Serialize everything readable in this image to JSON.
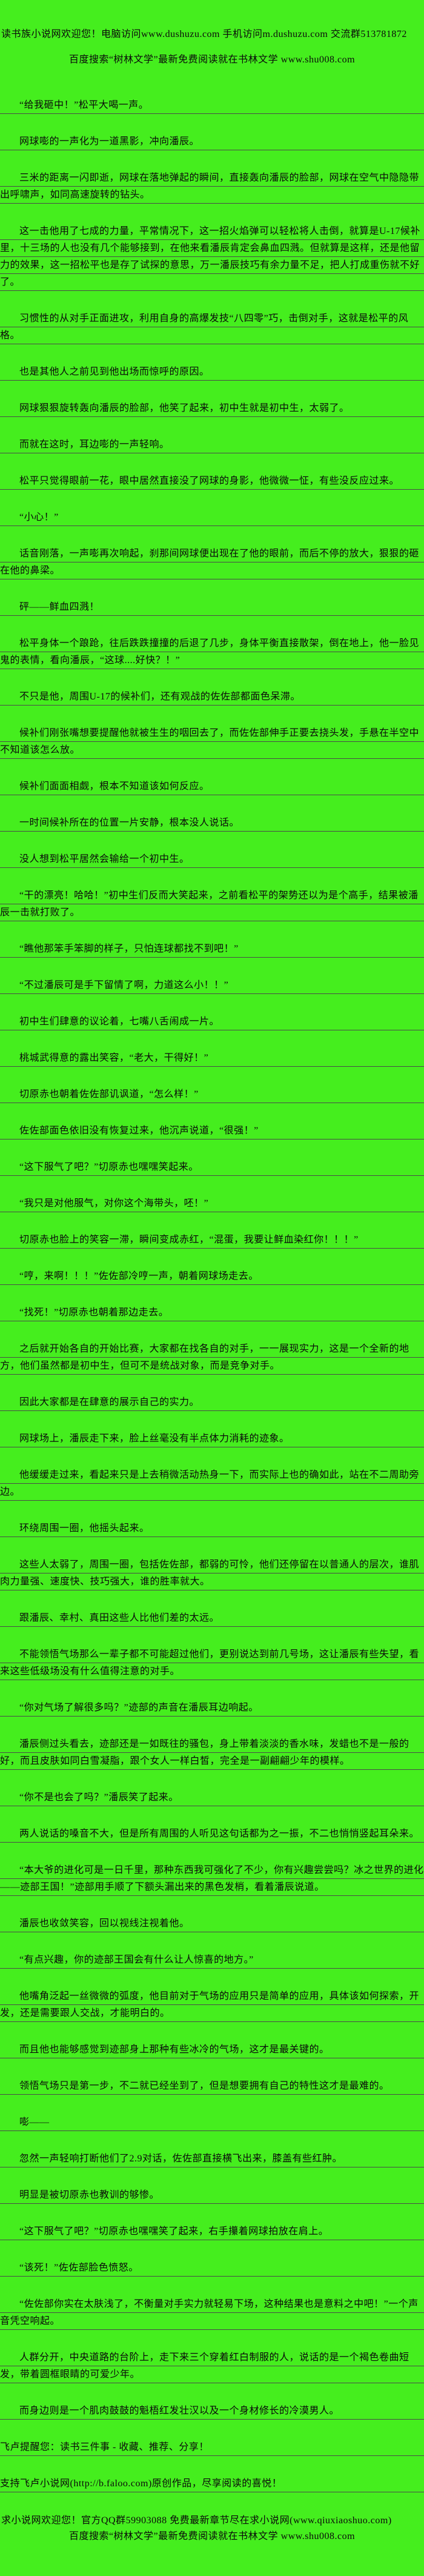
{
  "page": {
    "background_color": "#45ee1e",
    "text_color": "#0a0a0a",
    "rule_color": "#4a4a4a"
  },
  "header": {
    "site_notice": "读书族小说网欢迎您！电脑访问www.dushuzu.com 手机访问m.dushuzu.com 交流群513781872",
    "search_notice": "百度搜索“树林文学”最新免费阅读就在书林文学 www.shu008.com"
  },
  "content": {
    "paragraphs": [
      {
        "text": "“给我砸中！”松平大喝一声。",
        "indent": true
      },
      {
        "text": "网球嘭的一声化为一道黑影，冲向潘辰。",
        "indent": true
      },
      {
        "text": "三米的距离一闪即逝，网球在落地弹起的瞬间，直接轰向潘辰的脸部，网球在空气中隐隐带出呼啸声，如同高速旋转的钻头。",
        "indent": true
      },
      {
        "text": "这一击他用了七成的力量，平常情况下，这一招火焰弹可以轻松将人击倒，就算是U-17候补里，十三场的人也没有几个能够接到，在他来看潘辰肯定会鼻血四溅。但就算是这样，还是他留力的效果，这一招松平也是存了试探的意思，万一潘辰技巧有余力量不足，把人打成重伤就不好了。",
        "indent": true
      },
      {
        "text": "习惯性的从对手正面进攻，利用自身的高爆发技“八四零”巧，击倒对手，这就是松平的风格。",
        "indent": true
      },
      {
        "text": "也是其他人之前见到他出场而惊呼的原因。",
        "indent": true
      },
      {
        "text": "网球狠狠旋转轰向潘辰的脸部，他笑了起来，初中生就是初中生，太弱了。",
        "indent": true
      },
      {
        "text": "而就在这时，耳边嘭的一声轻响。",
        "indent": true
      },
      {
        "text": "松平只觉得眼前一花，眼中居然直接没了网球的身影，他微微一怔，有些没反应过来。",
        "indent": true
      },
      {
        "text": "“小心！”",
        "indent": true
      },
      {
        "text": "话音刚落，一声嘭再次响起，刹那间网球便出现在了他的眼前，而后不停的放大，狠狠的砸在他的鼻梁。",
        "indent": true
      },
      {
        "text": "砰——鲜血四溅！",
        "indent": true
      },
      {
        "text": "松平身体一个踉跄，往后跌跌撞撞的后退了几步，身体平衡直接散架，倒在地上，他一脸见鬼的表情，看向潘辰，“这球....好快？！”",
        "indent": true
      },
      {
        "text": "不只是他，周围U-17的候补们，还有观战的佐佐部都面色呆滞。",
        "indent": true
      },
      {
        "text": "候补们刚张嘴想要提醒他就被生生的咽回去了，而佐佐部伸手正要去挠头发，手悬在半空中不知道该怎么放。",
        "indent": true
      },
      {
        "text": "候补们面面相觑，根本不知道该如何反应。",
        "indent": true
      },
      {
        "text": "一时间候补所在的位置一片安静，根本没人说话。",
        "indent": true
      },
      {
        "text": "没人想到松平居然会输给一个初中生。",
        "indent": true
      },
      {
        "text": "“干的漂亮！哈哈！”初中生们反而大笑起来，之前看松平的架势还以为是个高手，结果被潘辰一击就打败了。",
        "indent": true
      },
      {
        "text": "“瞧他那笨手笨脚的样子，只怕连球都找不到吧！”",
        "indent": true
      },
      {
        "text": "“不过潘辰可是手下留情了啊，力道这么小！！”",
        "indent": true
      },
      {
        "text": "初中生们肆意的议论着，七嘴八舌闹成一片。",
        "indent": true
      },
      {
        "text": "桃城武得意的露出笑容，“老大，干得好！”",
        "indent": true
      },
      {
        "text": "切原赤也朝着佐佐部讥讽道，“怎么样！”",
        "indent": true
      },
      {
        "text": "佐佐部面色依旧没有恢复过来，他沉声说道，“很强！”",
        "indent": true
      },
      {
        "text": "“这下服气了吧？”切原赤也嘿嘿笑起来。",
        "indent": true
      },
      {
        "text": "“我只是对他服气，对你这个海带头，呸！”",
        "indent": true
      },
      {
        "text": "切原赤也脸上的笑容一滞，瞬间变成赤红，“混蛋，我要让鲜血染红你！！！”",
        "indent": true
      },
      {
        "text": "“哼，来啊！！！”佐佐部冷哼一声，朝着网球场走去。",
        "indent": true
      },
      {
        "text": "“找死！”切原赤也朝着那边走去。",
        "indent": true
      },
      {
        "text": "之后就开始各自的开始比赛，大家都在找各自的对手，一一展现实力，这是一个全新的地方，他们虽然都是初中生，但可不是统战对象，而是竞争对手。",
        "indent": true
      },
      {
        "text": "因此大家都是在肆意的展示自己的实力。",
        "indent": true
      },
      {
        "text": "网球场上，潘辰走下来，脸上丝毫没有半点体力消耗的迹象。",
        "indent": true
      },
      {
        "text": "他缓缓走过来，看起来只是上去稍微活动热身一下，而实际上也的确如此，站在不二周助旁边。",
        "indent": true
      },
      {
        "text": "环绕周围一圈，他摇头起来。",
        "indent": true
      },
      {
        "text": "这些人太弱了，周围一圈，包括佐佐部，都弱的可怜，他们还停留在以普通人的层次，谁肌肉力量强、速度快、技巧强大，谁的胜率就大。",
        "indent": true
      },
      {
        "text": "跟潘辰、幸村、真田这些人比他们差的太远。",
        "indent": true
      },
      {
        "text": "不能领悟气场那么一辈子都不可能超过他们，更别说达到前几号场，这让潘辰有些失望，看来这些低级场没有什么值得注意的对手。",
        "indent": true
      },
      {
        "text": "“你对气场了解很多吗？”迹部的声音在潘辰耳边响起。",
        "indent": true
      },
      {
        "text": "潘辰侧过头看去，迹部还是一如既往的骚包，身上带着淡淡的香水味，发蜡也不是一般的好，而且皮肤如同白雪凝脂，跟个女人一样白皙，完全是一副翩翩少年的模样。",
        "indent": true
      },
      {
        "text": "“你不是也会了吗？”潘辰笑了起来。",
        "indent": true
      },
      {
        "text": "两人说话的嗓音不大，但是所有周围的人听见这句话都为之一振，不二也悄悄竖起耳朵来。",
        "indent": true
      },
      {
        "text": "“本大爷的进化可是一日千里，那种东西我可强化了不少，你有兴趣尝尝吗？冰之世界的进化——迹部王国！”迹部用手顺了下额头漏出来的黑色发梢，看着潘辰说道。",
        "indent": true
      },
      {
        "text": "潘辰也收敛笑容，回以视线注视着他。",
        "indent": true
      },
      {
        "text": "“有点兴趣，你的迹部王国会有什么让人惊喜的地方。”",
        "indent": true
      },
      {
        "text": "他嘴角泛起一丝微微的弧度，他目前对于气场的应用只是简单的应用，具体该如何探索，开发，还是需要跟人交战，才能明白的。",
        "indent": true
      },
      {
        "text": "而且他也能够感觉到迹部身上那种有些冰冷的气场，这才是最关键的。",
        "indent": true
      },
      {
        "text": "领悟气场只是第一步，不二就已经坐到了，但是想要拥有自己的特性这才是最难的。",
        "indent": true
      },
      {
        "text": "嘭——",
        "indent": true
      },
      {
        "text": "忽然一声轻响打断他们了2.9对话，佐佐部直接横飞出来，膝盖有些红肿。",
        "indent": true
      },
      {
        "text": "明显是被切原赤也教训的够惨。",
        "indent": true
      },
      {
        "text": "“这下服气了吧？”切原赤也嘿嘿笑了起来，右手攥着网球拍放在肩上。",
        "indent": true
      },
      {
        "text": "“该死！”佐佐部脸色愤怒。",
        "indent": true
      },
      {
        "text": "“佐佐部你实在太肤浅了，不衡量对手实力就轻易下场，这种结果也是意料之中吧！”一个声音凭空响起。",
        "indent": true
      },
      {
        "text": "人群分开，中央道路的台阶上，走下来三个穿着红白制服的人，说话的是一个褐色卷曲短发，带着圆框眼睛的可爱少年。",
        "indent": true
      },
      {
        "text": "而身边则是一个肌肉鼓鼓的魁梧红发壮汉以及一个身材修长的冷漠男人。",
        "indent": true
      },
      {
        "text": "飞卢提醒您：读书三件事 - 收藏、推荐、分享！",
        "indent": false
      },
      {
        "text": "支持飞卢小说网(http://b.faloo.com)原创作品，尽享阅读的喜悦！",
        "indent": false
      }
    ]
  },
  "footer": {
    "qq_notice": "求小说网欢迎您！官方QQ群59903088 免费最新章节尽在求小说网(www.qiuxiaoshuo.com)",
    "search_notice": "百度搜索“树林文学”最新免费阅读就在书林文学 www.shu008.com"
  }
}
